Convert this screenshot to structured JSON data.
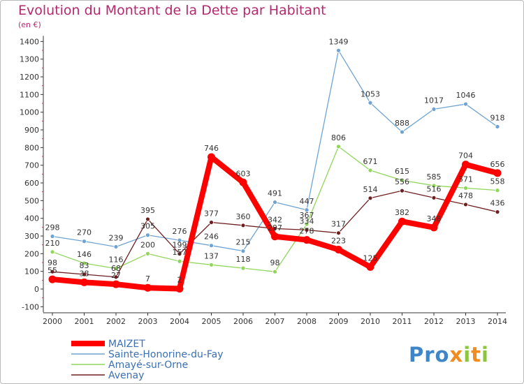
{
  "title": "Evolution du Montant de la Dette par Habitant",
  "subtitle": "(en €)",
  "logo": {
    "text_main": "Pro",
    "text_x": "x",
    "text_i": "i",
    "text_t": "t",
    "text_i2": "i"
  },
  "chart_data": {
    "type": "line",
    "x": [
      "2000",
      "2001",
      "2002",
      "2003",
      "2004",
      "2005",
      "2006",
      "2007",
      "2008",
      "2009",
      "2010",
      "2011",
      "2012",
      "2013",
      "2014"
    ],
    "ylim": [
      -100,
      1400
    ],
    "yticks": [
      -100,
      0,
      100,
      200,
      300,
      400,
      500,
      600,
      700,
      800,
      900,
      1000,
      1100,
      1200,
      1300,
      1400
    ],
    "grid": false,
    "legend_position": "bottom-left",
    "series": [
      {
        "name": "Sainte-Honorine-du-Fay",
        "color": "#6fa3d2",
        "values": [
          298,
          270,
          239,
          305,
          276,
          246,
          215,
          491,
          447,
          1349,
          1053,
          888,
          1017,
          1046,
          918
        ]
      },
      {
        "name": "Amayé-sur-Orne",
        "color": "#8fd65a",
        "values": [
          210,
          146,
          116,
          200,
          157,
          137,
          118,
          98,
          367,
          806,
          671,
          615,
          585,
          571,
          558
        ]
      },
      {
        "name": "Avenay",
        "color": "#6e1f1f",
        "values": [
          98,
          83,
          68,
          395,
          199,
          377,
          360,
          342,
          334,
          317,
          514,
          556,
          516,
          478,
          436
        ]
      },
      {
        "name": "MAIZET",
        "color": "#ff0000",
        "values": [
          55,
          38,
          27,
          7,
          2,
          746,
          603,
          297,
          278,
          223,
          125,
          382,
          348,
          704,
          656
        ]
      }
    ],
    "labels": [
      [
        "298",
        "270",
        "239",
        "305",
        "276",
        "246",
        "215",
        "491",
        "447",
        "1349",
        "1053",
        "888",
        "1017",
        "1046",
        "918"
      ],
      [
        "210",
        "146",
        "116",
        "200",
        "157",
        "137",
        "118",
        "98",
        "367",
        "806",
        "671",
        "615",
        "585",
        "571",
        "558"
      ],
      [
        "98",
        "83",
        "68",
        "395",
        "199",
        "377",
        "360",
        "342",
        "334",
        "317",
        "514",
        "556",
        "516",
        "478",
        "436"
      ],
      [
        "55",
        "38",
        "27",
        "7",
        "2",
        "746",
        "603",
        "297",
        "278",
        "223",
        "125",
        "382",
        "348",
        "704",
        "656"
      ]
    ]
  }
}
